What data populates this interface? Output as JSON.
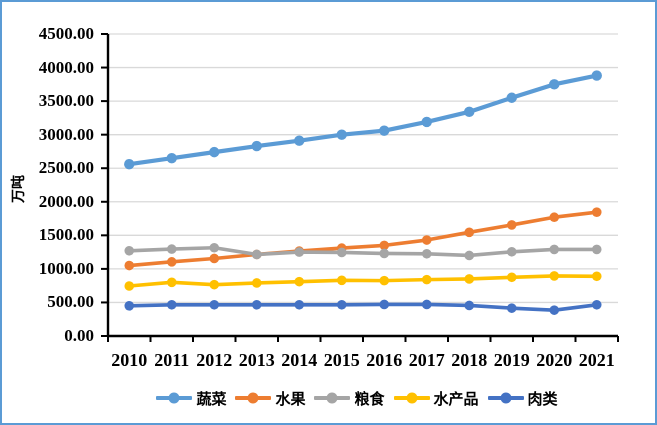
{
  "figure": {
    "border_color": "#5B9BD5",
    "background": "#FFFFFF"
  },
  "chart_data": {
    "type": "line",
    "title": "",
    "y_axis_title": "万吨",
    "xlabel": "",
    "ylabel": "万吨",
    "ylim": [
      0,
      4500
    ],
    "y_step": 500,
    "grid": "horizontal",
    "gridline_color": "#D9D9D9",
    "axis_color": "#000000",
    "legend_position": "bottom",
    "y_ticks": [
      "0.00",
      "500.00",
      "1000.00",
      "1500.00",
      "2000.00",
      "2500.00",
      "3000.00",
      "3500.00",
      "4000.00",
      "4500.00"
    ],
    "categories": [
      "2010",
      "2011",
      "2012",
      "2013",
      "2014",
      "2015",
      "2016",
      "2017",
      "2018",
      "2019",
      "2020",
      "2021"
    ],
    "series": [
      {
        "name": "蔬菜",
        "color": "#5B9BD5",
        "values": [
          2560,
          2650,
          2740,
          2830,
          2910,
          3000,
          3060,
          3190,
          3340,
          3550,
          3750,
          3880
        ]
      },
      {
        "name": "水果",
        "color": "#ED7D31",
        "values": [
          1050,
          1105,
          1155,
          1215,
          1265,
          1310,
          1350,
          1430,
          1545,
          1655,
          1770,
          1845
        ]
      },
      {
        "name": "粮食",
        "color": "#A5A5A5",
        "values": [
          1270,
          1295,
          1315,
          1215,
          1250,
          1245,
          1230,
          1225,
          1200,
          1255,
          1290,
          1290
        ]
      },
      {
        "name": "水产品",
        "color": "#FFC000",
        "values": [
          745,
          800,
          765,
          790,
          810,
          830,
          825,
          840,
          850,
          875,
          895,
          890
        ]
      },
      {
        "name": "肉类",
        "color": "#4472C4",
        "values": [
          450,
          465,
          465,
          465,
          465,
          465,
          470,
          470,
          455,
          415,
          385,
          465
        ]
      }
    ]
  }
}
